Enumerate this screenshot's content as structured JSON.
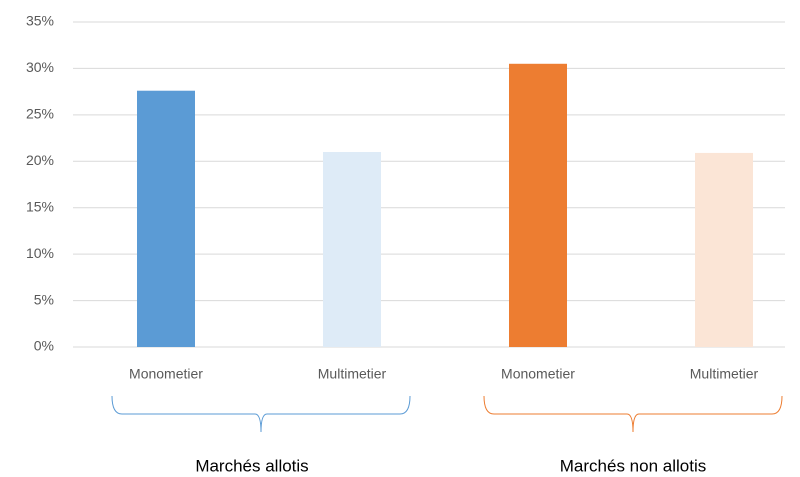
{
  "chart_data": {
    "type": "bar",
    "categories": [
      "Monometier",
      "Multimetier",
      "Monometier",
      "Multimetier"
    ],
    "values": [
      27.6,
      21.0,
      30.5,
      20.9
    ],
    "colors": [
      "#5b9bd5",
      "#deebf7",
      "#ed7d31",
      "#fbe5d6"
    ],
    "ylim": [
      0,
      35
    ],
    "yticks": [
      {
        "value": 0,
        "label": "0%"
      },
      {
        "value": 5,
        "label": "5%"
      },
      {
        "value": 10,
        "label": "10%"
      },
      {
        "value": 15,
        "label": "15%"
      },
      {
        "value": 20,
        "label": "20%"
      },
      {
        "value": 25,
        "label": "25%"
      },
      {
        "value": 30,
        "label": "30%"
      },
      {
        "value": 35,
        "label": "35%"
      }
    ],
    "grid": true,
    "groups": [
      {
        "label": "Marchés allotis",
        "color": "#5b9bd5"
      },
      {
        "label": "Marchés non allotis",
        "color": "#ed7d31"
      }
    ]
  }
}
